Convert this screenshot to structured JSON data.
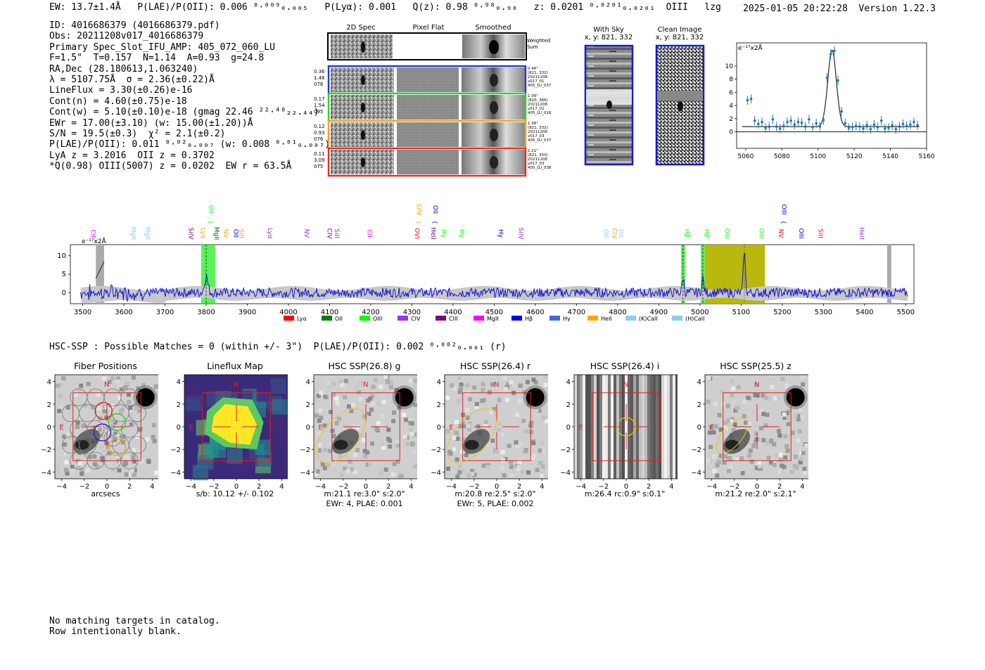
{
  "header": {
    "left": "EW: 13.7±1.4Å   P(LAE)/P(OII): 0.006 ⁰·⁰⁰⁹₀.₀₀₅   P(Lyα): 0.001   Q(z): 0.98 ⁰·⁹⁸₀.₉₈   z: 0.0201 ⁰·⁰²⁰¹₀.₀₂₀₁  OIII   lzg",
    "right": "2025-01-05 20:22:28  Version 1.22.3"
  },
  "info_lines": [
    "ID: 4016686379 (4016686379.pdf)",
    "Obs: 20211208v017_4016686379",
    "Primary Spec_Slot_IFU_AMP: 405_072_060_LU",
    "F=1.5\"  T=0.157  N=1.14  A=0.93  g=24.8",
    "RA,Dec (28.180613,1.063240)",
    "λ = 5107.75Å  σ = 2.36(±0.22)Å",
    "LineFlux = 3.30(±0.26)e-16",
    "Cont(n) = 4.60(±0.75)e-18",
    "Cont(w) = 5.10(±0.10)e-18 (gmag 22.46 ²²·⁴⁸₂₂.₄₄)",
    "EWr = 17.00(±3.10) (w: 15.00(±1.20))Å",
    "S/N = 19.5(±0.3)  χ² = 2.1(±0.2)",
    "P(LAE)/P(OII): 0.011 ⁰·⁰²₀.₀₀₇ (w: 0.008 ⁰·⁰¹₀.₀₀₇)",
    "LyA z = 3.2016  OII z = 0.3702",
    "*Q(0.98) OIII(5007) z = 0.0202  EW r = 63.5Å"
  ],
  "cutouts": {
    "col_titles": [
      "2D Spec",
      "Pixel Flat",
      "Smoothed"
    ],
    "weighted_label": "Weighted Sum",
    "rows": [
      {
        "left": [
          "0.36",
          "1.46",
          "076"
        ],
        "right": [
          "0.46\"",
          "(821, 332)",
          "20211208",
          "v017_01",
          "405_LU_037"
        ],
        "color": "#2b35c8"
      },
      {
        "left": [
          "0.17",
          "1.54",
          "095"
        ],
        "right": [
          "1.06\"",
          "(820, 366)",
          "20211208",
          "v017_02",
          "405_LU_018"
        ],
        "color": "#2bd62b"
      },
      {
        "left": [
          "0.12",
          "0.93",
          "076"
        ],
        "right": [
          "1.38\"",
          "(821, 332)",
          "20211208",
          "v017_03",
          "405_LU_037"
        ],
        "color": "#f0a020"
      },
      {
        "left": [
          "0.11",
          "3.09",
          "075"
        ],
        "right": [
          "1.21\"",
          "(821, 350)",
          "20211208",
          "v017_03",
          "405_LU_038"
        ],
        "color": "#e03020"
      }
    ]
  },
  "sky_panels": [
    {
      "title": "With Sky",
      "subtitle": "x, y: 821, 332"
    },
    {
      "title": "Clean Image",
      "subtitle": "x, y: 821, 332"
    }
  ],
  "zoom_unit": "e⁻¹⁷x2Å",
  "spectrum_unit": "e⁻¹⁷x2Å",
  "hsc_line": "HSC-SSP : Possible Matches = 0 (within +/- 3\")  P(LAE)/P(OII): 0.002 ⁰·⁰⁰²₀.₀₀₁ (r)",
  "image_panels": [
    {
      "title": "Fiber Positions",
      "captions": [
        "arcsecs"
      ]
    },
    {
      "title": "Lineflux Map",
      "captions": [
        "s/b: 10.12 +/- 0.102"
      ]
    },
    {
      "title": "HSC SSP(26.8) g",
      "captions": [
        "m:21.1  re:3.0\"  s:2.0\"",
        "EWr: 4, PLAE: 0.001"
      ]
    },
    {
      "title": "HSC SSP(26.4) r",
      "captions": [
        "m:20.8  re:2.5\"  s:2.0\"",
        "EWr: 5, PLAE: 0.002"
      ]
    },
    {
      "title": "HSC SSP(26.4) i",
      "captions": [
        "m:26.4 rc:0.9\"  s:0.1\""
      ]
    },
    {
      "title": "HSC SSP(25.5) z",
      "captions": [
        "m:21.2  re:2.0\"  s:2.1\""
      ]
    }
  ],
  "compass": {
    "north": "N",
    "east": "E"
  },
  "footer": [
    "No matching targets in catalog.",
    "Row intentionally blank."
  ],
  "colors": {
    "spectrum": "#1414d2",
    "error": "#c8c8c8",
    "zoom_points": "#1f77b4",
    "fit": "#333333",
    "highlight_green": "#22ee22",
    "highlight_olive": "#b4b400",
    "box_red": "#e02020"
  },
  "chart_data": [
    {
      "type": "scatter",
      "name": "zoom-line-fit",
      "title": "",
      "xlabel": "",
      "ylabel": "e⁻¹⁷x2Å",
      "xlim": [
        5055,
        5160
      ],
      "ylim": [
        -2.5,
        13.5
      ],
      "xticks": [
        5060,
        5080,
        5100,
        5120,
        5140,
        5160
      ],
      "yticks": [
        0,
        2,
        4,
        6,
        8,
        10
      ],
      "x": [
        5061,
        5063,
        5065,
        5067,
        5069,
        5071,
        5073,
        5075,
        5077,
        5079,
        5081,
        5083,
        5085,
        5087,
        5089,
        5091,
        5093,
        5095,
        5097,
        5099,
        5101,
        5103,
        5105,
        5107,
        5109,
        5111,
        5113,
        5115,
        5117,
        5119,
        5121,
        5123,
        5125,
        5127,
        5129,
        5131,
        5133,
        5135,
        5137,
        5139,
        5141,
        5143,
        5145,
        5147,
        5149,
        5151,
        5153,
        5155
      ],
      "y": [
        4.8,
        5.0,
        1.7,
        1.2,
        1.5,
        0.6,
        0.8,
        1.9,
        0.8,
        0.5,
        0.9,
        1.5,
        1.7,
        1.1,
        1.5,
        1.4,
        0.8,
        1.9,
        0.7,
        1.3,
        0.8,
        1.8,
        8.2,
        11.8,
        12.3,
        7.8,
        3.1,
        1.3,
        0.6,
        0.7,
        0.9,
        0.8,
        0.5,
        1.0,
        0.4,
        1.1,
        0.7,
        1.7,
        0.5,
        0.6,
        1.0,
        0.4,
        0.8,
        1.2,
        0.9,
        1.1,
        1.5,
        1.0
      ],
      "fit": {
        "center": 5107.75,
        "sigma": 2.36,
        "amplitude": 11.6,
        "continuum": 0.8
      }
    },
    {
      "type": "line",
      "name": "full-spectrum",
      "xlabel": "",
      "ylabel": "e⁻¹⁷x2Å",
      "xlim": [
        3470,
        5520
      ],
      "ylim": [
        -3,
        13
      ],
      "xticks": [
        3500,
        3600,
        3700,
        3800,
        3900,
        4000,
        4100,
        4200,
        4300,
        4400,
        4500,
        4600,
        4700,
        4800,
        4900,
        5000,
        5100,
        5200,
        5300,
        5400,
        5500
      ],
      "yticks": [
        0,
        5,
        10
      ],
      "peaks": [
        {
          "x": 3800,
          "amp": 4.5,
          "sigma": 4
        },
        {
          "x": 4959,
          "amp": 4.0,
          "sigma": 2.4
        },
        {
          "x": 5007,
          "amp": 4.0,
          "sigma": 2.4
        },
        {
          "x": 5107.75,
          "amp": 11.6,
          "sigma": 2.4
        }
      ],
      "highlights": [
        {
          "from": 3788,
          "to": 3822,
          "kind": "green"
        },
        {
          "from": 4954,
          "to": 4964,
          "kind": "green"
        },
        {
          "from": 5002,
          "to": 5012,
          "kind": "green"
        },
        {
          "from": 5012,
          "to": 5107,
          "kind": "olive"
        },
        {
          "from": 5107,
          "to": 5158,
          "kind": "olive"
        }
      ],
      "lines": [
        {
          "x": 3515,
          "label": "CII",
          "color": "#ff00ff",
          "row": 0
        },
        {
          "x": 3614,
          "label": "MgII",
          "color": "#87cefa",
          "row": 0
        },
        {
          "x": 3648,
          "label": "MgII",
          "color": "#87cefa",
          "row": 0
        },
        {
          "x": 3753,
          "label": "SiIV",
          "color": "#800080",
          "row": 0
        },
        {
          "x": 3783,
          "label": "Lyα",
          "color": "#ffa500",
          "row": 0
        },
        {
          "x": 3802,
          "label": "OII",
          "color": "#00ff00",
          "row": 1
        },
        {
          "x": 3815,
          "label": "MgII",
          "color": "#006400",
          "row": 0
        },
        {
          "x": 3838,
          "label": "NV",
          "color": "#ffa500",
          "row": 0
        },
        {
          "x": 3862,
          "label": "OII",
          "color": "#0000cd",
          "row": 0
        },
        {
          "x": 3876,
          "label": "SiII",
          "color": "#ffa500",
          "row": 0
        },
        {
          "x": 3945,
          "label": "Lyα",
          "color": "#9932cc",
          "row": 0
        },
        {
          "x": 4034,
          "label": "NV",
          "color": "#9932cc",
          "row": 0
        },
        {
          "x": 4090,
          "label": "CIV",
          "color": "#800080",
          "row": 0
        },
        {
          "x": 4108,
          "label": "SiII",
          "color": "#9932cc",
          "row": 0
        },
        {
          "x": 4187,
          "label": "CII",
          "color": "#ff00ff",
          "row": 0
        },
        {
          "x": 4307,
          "label": "SiIV",
          "color": "#ffa500",
          "row": 1
        },
        {
          "x": 4347,
          "label": "OII",
          "color": "#0000cd",
          "row": 1
        },
        {
          "x": 4303,
          "label": "OVI",
          "color": "#ff0000",
          "row": 0
        },
        {
          "x": 4342,
          "label": "HeII",
          "color": "#800080",
          "row": 0
        },
        {
          "x": 4368,
          "label": "Hγ",
          "color": "#00ff00",
          "row": 0
        },
        {
          "x": 4412,
          "label": "Hγ",
          "color": "#00ff00",
          "row": 0
        },
        {
          "x": 4506,
          "label": "Hγ",
          "color": "#0000cd",
          "row": 0
        },
        {
          "x": 4555,
          "label": "SiIV",
          "color": "#9932cc",
          "row": 0
        },
        {
          "x": 4762,
          "label": "OII",
          "color": "#87cefa",
          "row": 0
        },
        {
          "x": 4782,
          "label": "CIV",
          "color": "#ffa500",
          "row": 0
        },
        {
          "x": 4798,
          "label": "OII",
          "color": "#87cefa",
          "row": 0
        },
        {
          "x": 4959,
          "label": "Hβ",
          "color": "#00ff00",
          "row": 0
        },
        {
          "x": 5007,
          "label": "Hβ",
          "color": "#00ff00",
          "row": 0
        },
        {
          "x": 5056,
          "label": "OIII",
          "color": "#00ff00",
          "row": 0
        },
        {
          "x": 5140,
          "label": "OIII",
          "color": "#00ff00",
          "row": 0
        },
        {
          "x": 5187,
          "label": "NV",
          "color": "#ff0000",
          "row": 0
        },
        {
          "x": 5194,
          "label": "OIII",
          "color": "#0000cd",
          "row": 1
        },
        {
          "x": 5236,
          "label": "OIII",
          "color": "#0000cd",
          "row": 0
        },
        {
          "x": 5283,
          "label": "SiII",
          "color": "#ff0000",
          "row": 0
        },
        {
          "x": 5383,
          "label": "HeII",
          "color": "#9932cc",
          "row": 0
        }
      ],
      "legend": [
        {
          "label": "Lyα",
          "color": "#ff0000"
        },
        {
          "label": "OII",
          "color": "#008000"
        },
        {
          "label": "OIII",
          "color": "#00ff00"
        },
        {
          "label": "CIV",
          "color": "#9b30ff"
        },
        {
          "label": "CIII",
          "color": "#800080"
        },
        {
          "label": "MgII",
          "color": "#ff00ff"
        },
        {
          "label": "Hβ",
          "color": "#0000ff"
        },
        {
          "label": "Hγ",
          "color": "#4169e1"
        },
        {
          "label": "HeII",
          "color": "#ffa500"
        },
        {
          "label": "(K)CaII",
          "color": "#87cefa"
        },
        {
          "label": "(H)CaII",
          "color": "#87ceeb"
        }
      ]
    }
  ]
}
